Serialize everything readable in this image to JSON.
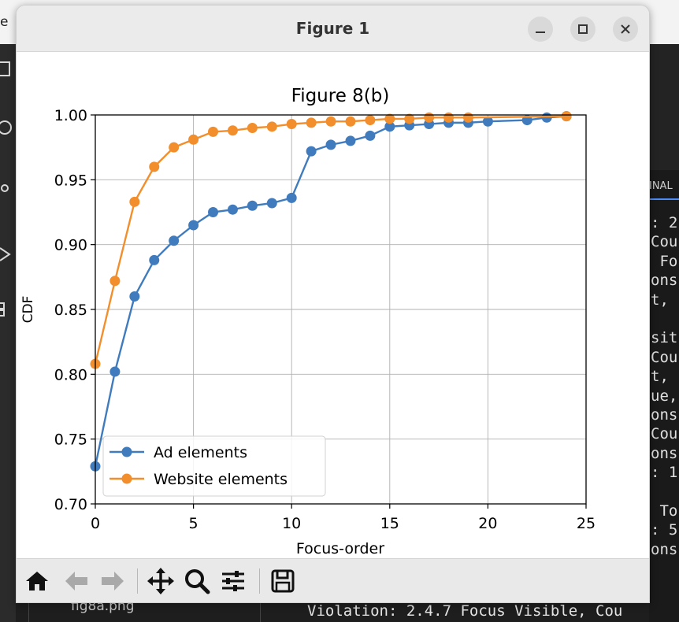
{
  "background": {
    "topbar_fragment": "e",
    "terminal_tab_label": "INAL",
    "terminal_lines": [
      ": 2",
      "Cou",
      " Fo",
      "ons",
      "t, ",
      "",
      "sit",
      "Cou",
      "t, ",
      "ue,",
      "ons",
      "Cou",
      "ons",
      ": 1",
      "",
      " To",
      ": 5",
      "ons"
    ],
    "bottom_terminal_line": "Violation: 2.4.7 Focus Visible, Cou",
    "file_label": "fig8a.png"
  },
  "window": {
    "title": "Figure 1",
    "buttons": {
      "minimize_icon": "minimize-icon",
      "maximize_icon": "maximize-icon",
      "close_icon": "close-icon"
    }
  },
  "toolbar": {
    "icons": [
      "home-icon",
      "back-arrow-icon",
      "forward-arrow-icon",
      "pan-icon",
      "zoom-icon",
      "configure-subplots-icon",
      "save-icon"
    ]
  },
  "chart_data": {
    "type": "line",
    "title": "Figure 8(b)",
    "xlabel": "Focus-order",
    "ylabel": "CDF",
    "xlim": [
      0,
      25
    ],
    "ylim": [
      0.7,
      1.0
    ],
    "xticks": [
      "0",
      "5",
      "10",
      "15",
      "20",
      "25"
    ],
    "yticks": [
      "0.70",
      "0.75",
      "0.80",
      "0.85",
      "0.90",
      "0.95",
      "1.00"
    ],
    "grid": true,
    "legend_position": "lower-left",
    "series": [
      {
        "name": "Ad elements",
        "color": "#3f7bbd",
        "x": [
          0,
          1,
          2,
          3,
          4,
          5,
          6,
          7,
          8,
          9,
          10,
          11,
          12,
          13,
          14,
          15,
          16,
          17,
          18,
          19,
          20,
          22,
          23,
          24
        ],
        "y": [
          0.729,
          0.802,
          0.86,
          0.888,
          0.903,
          0.915,
          0.925,
          0.927,
          0.93,
          0.932,
          0.936,
          0.972,
          0.977,
          0.98,
          0.984,
          0.991,
          0.992,
          0.993,
          0.994,
          0.994,
          0.995,
          0.996,
          0.998,
          0.999
        ]
      },
      {
        "name": "Website elements",
        "color": "#f28e2b",
        "x": [
          0,
          1,
          2,
          3,
          4,
          5,
          6,
          7,
          8,
          9,
          10,
          11,
          12,
          13,
          14,
          15,
          16,
          17,
          18,
          19,
          24
        ],
        "y": [
          0.808,
          0.872,
          0.933,
          0.96,
          0.975,
          0.981,
          0.987,
          0.988,
          0.99,
          0.991,
          0.993,
          0.994,
          0.995,
          0.995,
          0.996,
          0.997,
          0.997,
          0.998,
          0.998,
          0.998,
          0.999
        ]
      }
    ]
  }
}
